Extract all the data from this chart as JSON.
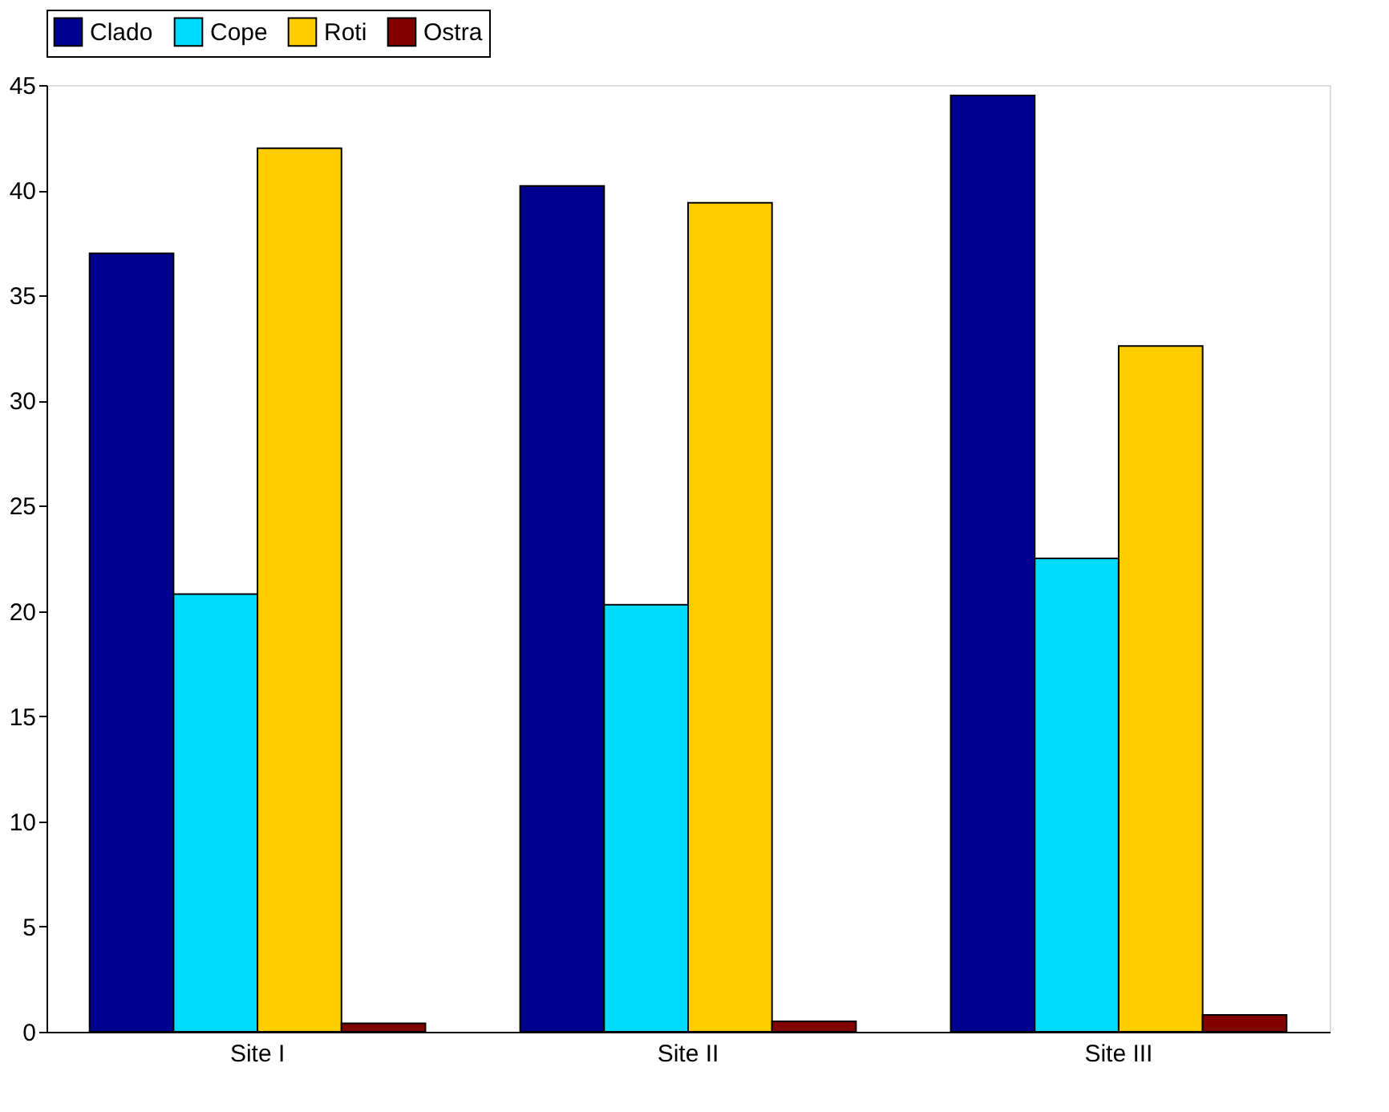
{
  "chart_data": {
    "type": "bar",
    "categories": [
      "Site I",
      "Site II",
      "Site III"
    ],
    "series": [
      {
        "name": "Clado",
        "color": "#00008f",
        "values": [
          37,
          40.2,
          44.5
        ]
      },
      {
        "name": "Cope",
        "color": "#00dcff",
        "values": [
          20.8,
          20.3,
          22.5
        ]
      },
      {
        "name": "Roti",
        "color": "#ffcc00",
        "values": [
          42,
          39.4,
          32.6
        ]
      },
      {
        "name": "Ostra",
        "color": "#800000",
        "values": [
          0.4,
          0.5,
          0.8
        ]
      }
    ],
    "ylim": [
      0,
      45
    ],
    "yticks": [
      0,
      5,
      10,
      15,
      20,
      25,
      30,
      35,
      40,
      45
    ],
    "grid": false,
    "legend": "top"
  }
}
